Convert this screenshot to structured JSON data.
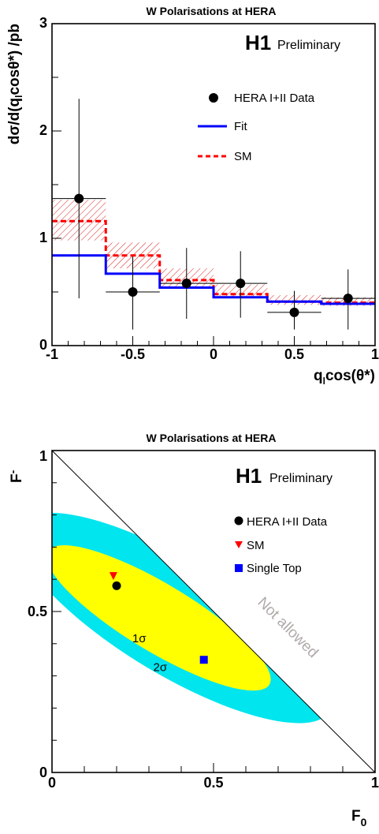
{
  "colors": {
    "data": "#000000",
    "fit": "#0000ff",
    "sm": "#ff0000",
    "sm_band": "#d82020",
    "single_top": "#0000ff",
    "sigma1": "#ffff00",
    "sigma2": "#00e5ee",
    "not_allowed_text": "#b0aaa8"
  },
  "chart_data": [
    {
      "type": "line",
      "title": "W Polarisations at HERA",
      "experiment": "H1",
      "status": "Preliminary",
      "xlabel": "qₗcos(θ*)",
      "ylabel": "dσ/d(qₗcosθ*) /pb",
      "xlim": [
        -1,
        1
      ],
      "ylim": [
        0,
        3
      ],
      "xticks": [
        "-1",
        "-0.5",
        "0",
        "0.5",
        "1"
      ],
      "yticks": [
        "0",
        "1",
        "2",
        "3"
      ],
      "legend_position": "top-right",
      "legend": [
        "HERA I+II Data",
        "Fit",
        "SM"
      ],
      "bin_edges": [
        -1,
        -0.667,
        -0.333,
        0,
        0.333,
        0.667,
        1
      ],
      "series": [
        {
          "name": "HERA I+II Data",
          "kind": "points",
          "x": [
            -0.833,
            -0.5,
            -0.167,
            0.167,
            0.5,
            0.833
          ],
          "y": [
            1.37,
            0.5,
            0.58,
            0.58,
            0.31,
            0.44
          ],
          "y_err_low": [
            0.93,
            0.35,
            0.33,
            0.32,
            0.16,
            0.29
          ],
          "y_err_high": [
            0.93,
            0.33,
            0.33,
            0.3,
            0.2,
            0.27
          ]
        },
        {
          "name": "Fit",
          "kind": "step",
          "values": [
            0.84,
            0.67,
            0.54,
            0.45,
            0.41,
            0.39
          ]
        },
        {
          "name": "SM",
          "kind": "step",
          "values": [
            1.16,
            0.84,
            0.61,
            0.48,
            0.41,
            0.4
          ],
          "band_low": [
            0.98,
            0.72,
            0.55,
            0.45,
            0.38,
            0.37
          ],
          "band_high": [
            1.36,
            0.96,
            0.72,
            0.57,
            0.47,
            0.45
          ]
        }
      ]
    },
    {
      "type": "scatter",
      "title": "W Polarisations at HERA",
      "experiment": "H1",
      "status": "Preliminary",
      "xlabel": "F₀",
      "ylabel": "F₋",
      "xlim": [
        0,
        1
      ],
      "ylim": [
        0,
        1
      ],
      "xticks": [
        "0",
        "0.5",
        "1"
      ],
      "yticks": [
        "0",
        "0.5",
        "1"
      ],
      "legend_position": "top-right",
      "legend": [
        "HERA I+II Data",
        "SM",
        "Single Top"
      ],
      "points": [
        {
          "name": "HERA I+II Data",
          "x": 0.2,
          "y": 0.58,
          "marker": "circle"
        },
        {
          "name": "SM",
          "x": 0.19,
          "y": 0.61,
          "marker": "triangle-down"
        },
        {
          "name": "Single Top",
          "x": 0.47,
          "y": 0.35,
          "marker": "square"
        }
      ],
      "contours": [
        {
          "label": "2σ",
          "center": [
            0.38,
            0.48
          ],
          "halfwidth_major": 0.56,
          "halfwidth_minor": 0.176,
          "angle_deg": -31
        },
        {
          "label": "1σ",
          "center": [
            0.33,
            0.48
          ],
          "halfwidth_major": 0.4,
          "halfwidth_minor": 0.105,
          "angle_deg": -31
        }
      ],
      "boundary": {
        "line": "F₀ + F₋ = 1",
        "annotation": "Not allowed"
      }
    }
  ]
}
